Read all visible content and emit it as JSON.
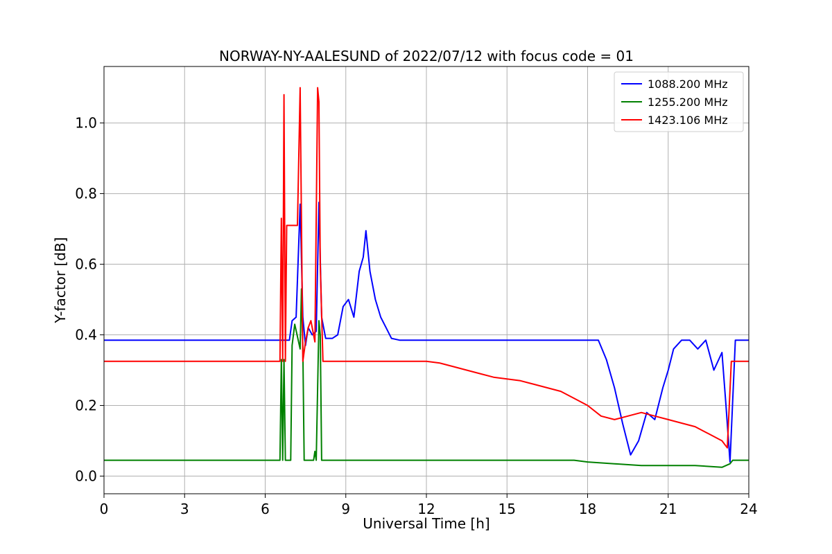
{
  "chart_data": {
    "type": "line",
    "title": "NORWAY-NY-AALESUND of 2022/07/12 with focus code = 01",
    "xlabel": "Universal Time [h]",
    "ylabel": "Y-factor [dB]",
    "xlim": [
      0,
      24
    ],
    "ylim": [
      -0.05,
      1.16
    ],
    "xticks": [
      0,
      3,
      6,
      9,
      12,
      15,
      18,
      21,
      24
    ],
    "xtick_labels": [
      "0",
      "3",
      "6",
      "9",
      "12",
      "15",
      "18",
      "21",
      "24"
    ],
    "yticks": [
      0.0,
      0.2,
      0.4,
      0.6,
      0.8,
      1.0
    ],
    "ytick_labels": [
      "0.0",
      "0.2",
      "0.4",
      "0.6",
      "0.8",
      "1.0"
    ],
    "grid": true,
    "legend_position": "top-right",
    "series": [
      {
        "name": "1088.200 MHz",
        "color": "#0000ff",
        "x": [
          0,
          6.55,
          6.75,
          6.9,
          7.0,
          7.15,
          7.3,
          7.4,
          7.5,
          7.6,
          7.75,
          7.9,
          8.0,
          8.1,
          8.25,
          8.5,
          8.7,
          8.9,
          9.1,
          9.3,
          9.5,
          9.65,
          9.75,
          9.9,
          10.1,
          10.3,
          10.5,
          10.7,
          11.0,
          12.0,
          14.5,
          17.0,
          18.0,
          18.4,
          18.7,
          19.0,
          19.3,
          19.6,
          19.9,
          20.2,
          20.5,
          20.8,
          21.0,
          21.2,
          21.5,
          21.8,
          22.1,
          22.4,
          22.7,
          23.0,
          23.15,
          23.3,
          23.5,
          24.0
        ],
        "y": [
          0.385,
          0.385,
          0.385,
          0.385,
          0.44,
          0.45,
          0.77,
          0.45,
          0.37,
          0.42,
          0.4,
          0.41,
          0.775,
          0.45,
          0.39,
          0.39,
          0.4,
          0.48,
          0.5,
          0.45,
          0.58,
          0.62,
          0.695,
          0.58,
          0.5,
          0.45,
          0.42,
          0.39,
          0.385,
          0.385,
          0.385,
          0.385,
          0.385,
          0.385,
          0.33,
          0.25,
          0.15,
          0.06,
          0.1,
          0.18,
          0.16,
          0.25,
          0.3,
          0.36,
          0.385,
          0.385,
          0.36,
          0.385,
          0.3,
          0.35,
          0.2,
          0.04,
          0.385,
          0.385
        ]
      },
      {
        "name": "1255.200 MHz",
        "color": "#008000",
        "x": [
          0,
          6.55,
          6.6,
          6.65,
          6.7,
          6.75,
          6.8,
          6.95,
          7.0,
          7.1,
          7.3,
          7.35,
          7.4,
          7.45,
          7.5,
          7.8,
          7.85,
          7.9,
          8.0,
          8.05,
          8.1,
          8.15,
          12.0,
          17.5,
          18.0,
          19.0,
          20.0,
          21.0,
          22.0,
          23.0,
          23.3,
          23.4,
          24.0
        ],
        "y": [
          0.045,
          0.045,
          0.33,
          0.045,
          0.33,
          0.045,
          0.045,
          0.045,
          0.37,
          0.43,
          0.36,
          0.53,
          0.36,
          0.045,
          0.045,
          0.045,
          0.07,
          0.045,
          0.44,
          0.4,
          0.045,
          0.045,
          0.045,
          0.045,
          0.04,
          0.035,
          0.03,
          0.03,
          0.03,
          0.025,
          0.035,
          0.045,
          0.045
        ]
      },
      {
        "name": "1423.106 MHz",
        "color": "#ff0000",
        "x": [
          0,
          6.55,
          6.6,
          6.65,
          6.7,
          6.75,
          6.8,
          6.95,
          7.0,
          7.2,
          7.3,
          7.35,
          7.4,
          7.5,
          7.6,
          7.7,
          7.85,
          7.95,
          8.0,
          8.05,
          8.15,
          8.25,
          12.0,
          12.5,
          13.0,
          13.5,
          14.0,
          14.5,
          15.0,
          15.5,
          16.0,
          16.5,
          17.0,
          17.5,
          18.0,
          18.5,
          19.0,
          19.5,
          20.0,
          20.5,
          21.0,
          21.5,
          22.0,
          22.5,
          23.0,
          23.2,
          23.35,
          24.0
        ],
        "y": [
          0.325,
          0.325,
          0.73,
          0.325,
          1.08,
          0.325,
          0.71,
          0.71,
          0.71,
          0.71,
          1.1,
          0.72,
          0.325,
          0.38,
          0.42,
          0.44,
          0.38,
          1.1,
          1.06,
          0.6,
          0.325,
          0.325,
          0.325,
          0.32,
          0.31,
          0.3,
          0.29,
          0.28,
          0.275,
          0.27,
          0.26,
          0.25,
          0.24,
          0.22,
          0.2,
          0.17,
          0.16,
          0.17,
          0.18,
          0.17,
          0.16,
          0.15,
          0.14,
          0.12,
          0.1,
          0.08,
          0.325,
          0.325
        ]
      }
    ]
  }
}
